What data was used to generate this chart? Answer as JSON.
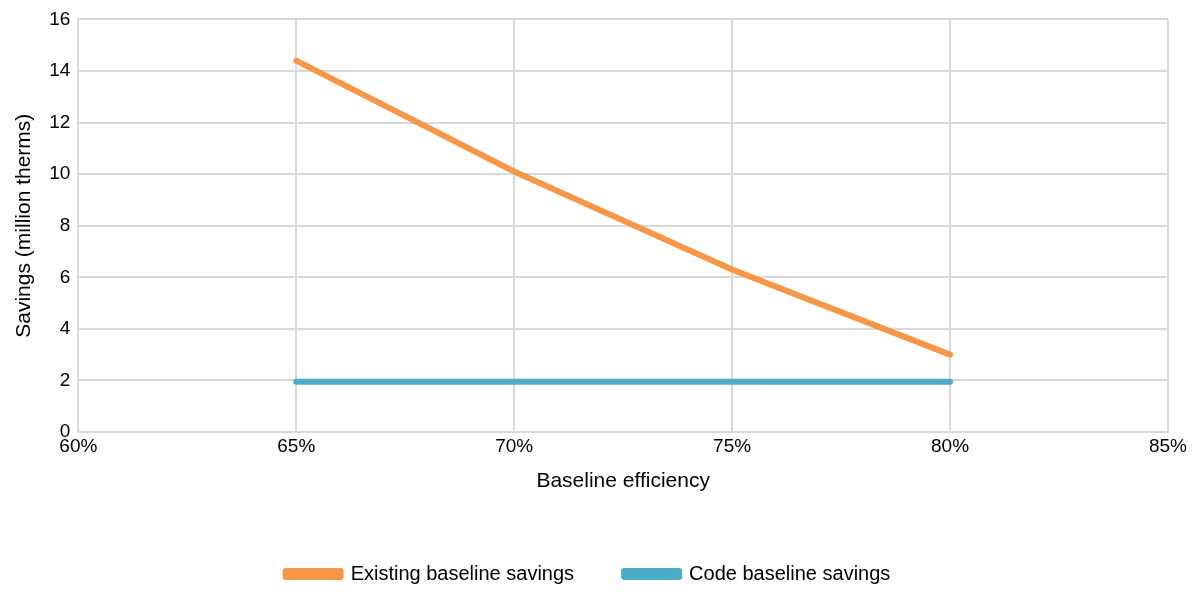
{
  "chart_data": {
    "type": "line",
    "xlabel": "Baseline efficiency",
    "ylabel": "Savings (million therms)",
    "x": [
      65,
      70,
      75,
      80
    ],
    "series": [
      {
        "name": "Existing baseline savings",
        "color": "#f79646",
        "values": [
          14.4,
          10.1,
          6.3,
          3.0
        ]
      },
      {
        "name": "Code baseline savings",
        "color": "#4bacc6",
        "values": [
          1.95,
          1.95,
          1.95,
          1.95
        ]
      }
    ],
    "xlim": [
      60,
      85
    ],
    "xticks": [
      {
        "value": 60,
        "label": "60%"
      },
      {
        "value": 65,
        "label": "65%"
      },
      {
        "value": 70,
        "label": "70%"
      },
      {
        "value": 75,
        "label": "75%"
      },
      {
        "value": 80,
        "label": "80%"
      },
      {
        "value": 85,
        "label": "85%"
      }
    ],
    "ylim": [
      0,
      16
    ],
    "yticks": [
      0,
      2,
      4,
      6,
      8,
      10,
      12,
      14,
      16
    ],
    "grid": true,
    "legend": "bottom",
    "marker": "none",
    "line_style": "solid"
  }
}
